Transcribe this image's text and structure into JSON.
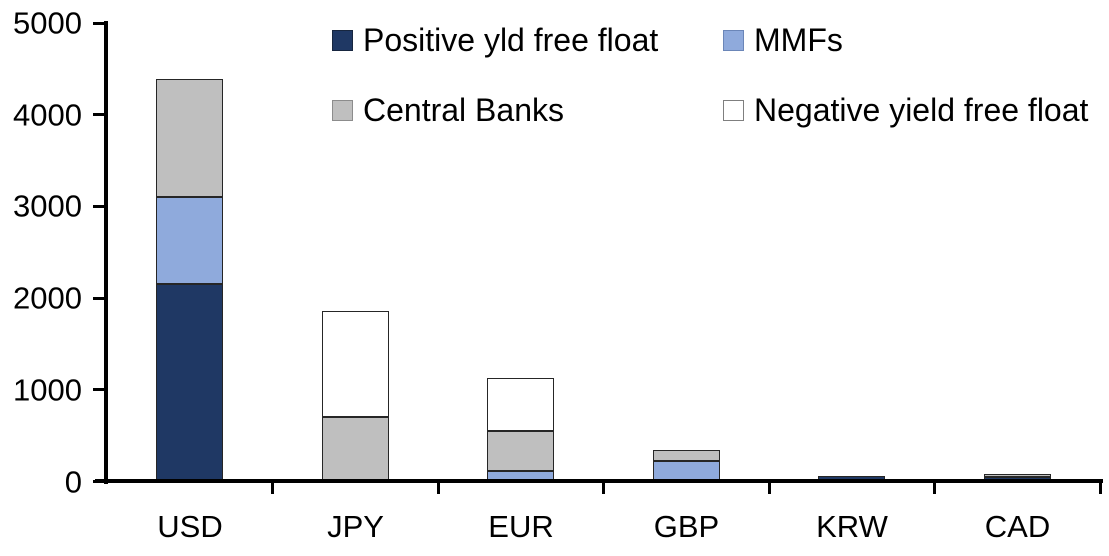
{
  "chart_data": {
    "type": "bar",
    "stacked": true,
    "title": "",
    "xlabel": "",
    "ylabel": "",
    "categories": [
      "USD",
      "JPY",
      "EUR",
      "GBP",
      "KRW",
      "CAD"
    ],
    "series": [
      {
        "name": "Positive yld free float",
        "color": "#1F3864",
        "border": "#17263F",
        "values": [
          2150,
          0,
          0,
          0,
          50,
          40
        ]
      },
      {
        "name": "MMFs",
        "color": "#8FAADC",
        "border": "#5B79B3",
        "values": [
          950,
          0,
          110,
          215,
          0,
          0
        ]
      },
      {
        "name": "Central Banks",
        "color": "#BFBFBF",
        "border": "#595959",
        "values": [
          1280,
          700,
          440,
          120,
          0,
          25
        ]
      },
      {
        "name": "Negative yield free float",
        "color": "#FFFFFF",
        "border": "#404040",
        "values": [
          0,
          1150,
          570,
          0,
          0,
          0
        ]
      }
    ],
    "totals": [
      4380,
      1850,
      1120,
      335,
      50,
      65
    ],
    "ylim": [
      0,
      5000
    ],
    "yticks": [
      0,
      1000,
      2000,
      3000,
      4000,
      5000
    ],
    "ytick_labels": [
      "0",
      "1000",
      "2000",
      "3000",
      "4000",
      "5000"
    ],
    "grid": "off",
    "legend_position": "top",
    "axis_color": "#000000",
    "bar_border_color": "#262626",
    "background_color": "#FFFFFF"
  },
  "legend": {
    "items": [
      {
        "label": "Positive yld free float",
        "swatch_color": "#1F3864",
        "swatch_border": "#17263F"
      },
      {
        "label": "MMFs",
        "swatch_color": "#8FAADC",
        "swatch_border": "#6B86B8"
      },
      {
        "label": "Central Banks",
        "swatch_color": "#BFBFBF",
        "swatch_border": "#8C8C8C"
      },
      {
        "label": "Negative yield free float",
        "swatch_color": "#FFFFFF",
        "swatch_border": "#7F7F7F"
      }
    ]
  }
}
